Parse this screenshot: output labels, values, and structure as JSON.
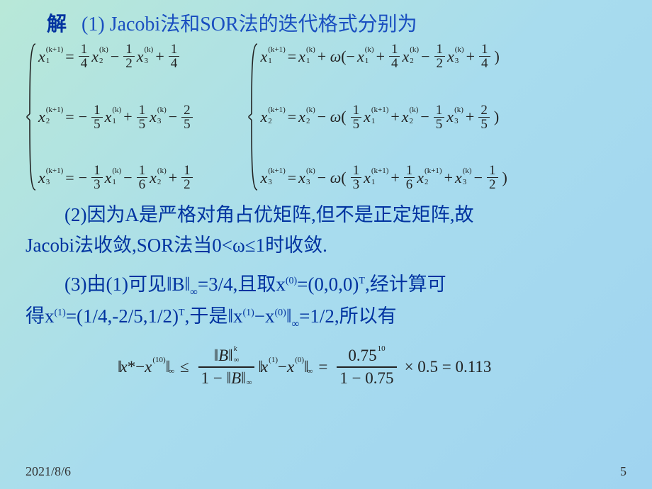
{
  "background": {
    "gradient_start": "#b8e8d8",
    "gradient_mid": "#a8dcee",
    "gradient_end": "#a0d4f0"
  },
  "typography": {
    "body_font": "SimSun / Times New Roman",
    "heading_color": "#0033a0",
    "text_color": "#222",
    "base_size_pt": 20
  },
  "line1": {
    "prefix": "解",
    "label": "(1)",
    "text": "Jacobi法和SOR法的迭代格式分别为"
  },
  "jacobi": {
    "rows": [
      {
        "lhs": {
          "var": "x",
          "sub": "1",
          "sup": "(k+1)"
        },
        "rhs": [
          {
            "sign": "",
            "num": "1",
            "den": "4",
            "var": "x",
            "vsub": "2",
            "vsup": "(k)"
          },
          {
            "sign": "−",
            "num": "1",
            "den": "2",
            "var": "x",
            "vsub": "3",
            "vsup": "(k)"
          },
          {
            "sign": "+",
            "num": "1",
            "den": "4"
          }
        ]
      },
      {
        "lhs": {
          "var": "x",
          "sub": "2",
          "sup": "(k+1)"
        },
        "rhs": [
          {
            "sign": "−",
            "num": "1",
            "den": "5",
            "var": "x",
            "vsub": "1",
            "vsup": "(k)"
          },
          {
            "sign": "+",
            "num": "1",
            "den": "5",
            "var": "x",
            "vsub": "3",
            "vsup": "(k)"
          },
          {
            "sign": "−",
            "num": "2",
            "den": "5"
          }
        ]
      },
      {
        "lhs": {
          "var": "x",
          "sub": "3",
          "sup": "(k+1)"
        },
        "rhs": [
          {
            "sign": "−",
            "num": "1",
            "den": "3",
            "var": "x",
            "vsub": "1",
            "vsup": "(k)"
          },
          {
            "sign": "−",
            "num": "1",
            "den": "6",
            "var": "x",
            "vsub": "2",
            "vsup": "(k)"
          },
          {
            "sign": "+",
            "num": "1",
            "den": "2"
          }
        ]
      }
    ]
  },
  "sor": {
    "rows": [
      {
        "lhs": {
          "var": "x",
          "sub": "1",
          "sup": "(k+1)"
        },
        "base": {
          "var": "x",
          "sub": "1",
          "sup": "(k)"
        },
        "between": "+ ω(−",
        "terms": [
          {
            "var": "x",
            "vsub": "1",
            "vsup": "(k)"
          },
          {
            "sign": "+",
            "num": "1",
            "den": "4",
            "var": "x",
            "vsub": "2",
            "vsup": "(k)"
          },
          {
            "sign": "−",
            "num": "1",
            "den": "2",
            "var": "x",
            "vsub": "3",
            "vsup": "(k)"
          },
          {
            "sign": "+",
            "num": "1",
            "den": "4"
          }
        ],
        "close": ")"
      },
      {
        "lhs": {
          "var": "x",
          "sub": "2",
          "sup": "(k+1)"
        },
        "base": {
          "var": "x",
          "sub": "2",
          "sup": "(k)"
        },
        "between": "− ω(",
        "terms": [
          {
            "num": "1",
            "den": "5",
            "var": "x",
            "vsub": "1",
            "vsup": "(k+1)"
          },
          {
            "sign": "+",
            "var": "x",
            "vsub": "2",
            "vsup": "(k)"
          },
          {
            "sign": "−",
            "num": "1",
            "den": "5",
            "var": "x",
            "vsub": "3",
            "vsup": "(k)"
          },
          {
            "sign": "+",
            "num": "2",
            "den": "5"
          }
        ],
        "close": ")"
      },
      {
        "lhs": {
          "var": "x",
          "sub": "3",
          "sup": "(k+1)"
        },
        "base": {
          "var": "x",
          "sub": "3",
          "sup": "(k)"
        },
        "between": "− ω(",
        "terms": [
          {
            "num": "1",
            "den": "3",
            "var": "x",
            "vsub": "1",
            "vsup": "(k+1)"
          },
          {
            "sign": "+",
            "num": "1",
            "den": "6",
            "var": "x",
            "vsub": "2",
            "vsup": "(k+1)"
          },
          {
            "sign": "+",
            "var": "x",
            "vsub": "3",
            "vsup": "(k)"
          },
          {
            "sign": "−",
            "num": "1",
            "den": "2"
          }
        ],
        "close": ")"
      }
    ]
  },
  "para2": {
    "label": "(2)",
    "text_a": "因为A是严格对角占优矩阵,但不是正定矩阵,故",
    "text_b": "Jacobi法收敛,SOR法当0<ω≤1时收敛."
  },
  "para3": {
    "label": "(3)",
    "text_a": "由(1)可见‖B‖",
    "inf": "∞",
    "eq1": "=3/4,且取x",
    "sup0": "(0)",
    "eq2": "=(0,0,0)",
    "T": "T",
    "eq3": ",经计算可",
    "text_b": "得x",
    "sup1": "(1)",
    "eq4": "=(1/4,-2/5,1/2)",
    "eq5": ",于是‖x",
    "eq6": "−x",
    "eq7": "‖",
    "eq8": "=1/2,所以有"
  },
  "error_eq": {
    "left": {
      "inside": "x* − x",
      "sup": "(10)",
      "sub": "∞"
    },
    "le": "≤",
    "frac_num": {
      "B": "B",
      "inf": "∞",
      "k": "k"
    },
    "frac_den": {
      "one": "1 −",
      "B": "B",
      "inf": "∞"
    },
    "mid": {
      "inside": "x",
      "s1": "(1)",
      "minus": " − x",
      "s0": "(0)",
      "inf": "∞"
    },
    "eq": "=",
    "rhs_num": "0.75",
    "rhs_exp": "10",
    "rhs_den": "1 − 0.75",
    "times": "× 0.5 = 0.113"
  },
  "footer": {
    "date": "2021/8/6",
    "page": "5"
  }
}
